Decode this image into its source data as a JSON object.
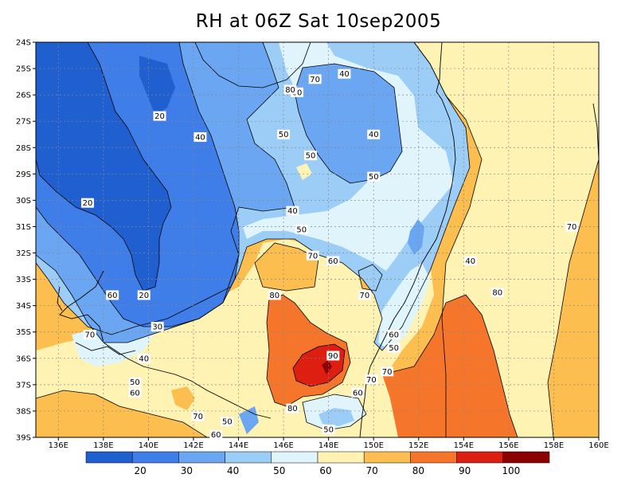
{
  "title": "RH at 06Z Sat 10sep2005",
  "map": {
    "x_ticks": [
      "136E",
      "138E",
      "140E",
      "142E",
      "144E",
      "146E",
      "148E",
      "150E",
      "152E",
      "154E",
      "156E",
      "158E",
      "160E"
    ],
    "y_ticks": [
      "24S",
      "25S",
      "26S",
      "27S",
      "28S",
      "29S",
      "30S",
      "31S",
      "32S",
      "33S",
      "34S",
      "35S",
      "36S",
      "37S",
      "38S",
      "39S"
    ],
    "contour_labels": [
      {
        "text": "20",
        "lon": 140.5,
        "lat": -26.8
      },
      {
        "text": "20",
        "lon": 137.3,
        "lat": -30.1
      },
      {
        "text": "20",
        "lon": 139.8,
        "lat": -33.6
      },
      {
        "text": "30",
        "lon": 140.4,
        "lat": -34.8
      },
      {
        "text": "40",
        "lon": 142.3,
        "lat": -27.6
      },
      {
        "text": "40",
        "lon": 148.7,
        "lat": -25.2
      },
      {
        "text": "40",
        "lon": 150.0,
        "lat": -27.5
      },
      {
        "text": "40",
        "lon": 146.4,
        "lat": -30.4
      },
      {
        "text": "40",
        "lon": 154.3,
        "lat": -32.3
      },
      {
        "text": "40",
        "lon": 139.8,
        "lat": -36.0
      },
      {
        "text": "50",
        "lon": 146.0,
        "lat": -27.5
      },
      {
        "text": "50",
        "lon": 147.2,
        "lat": -28.3
      },
      {
        "text": "50",
        "lon": 150.0,
        "lat": -29.1
      },
      {
        "text": "50",
        "lon": 146.8,
        "lat": -31.1
      },
      {
        "text": "50",
        "lon": 150.9,
        "lat": -35.6
      },
      {
        "text": "50",
        "lon": 139.4,
        "lat": -36.9
      },
      {
        "text": "50",
        "lon": 143.5,
        "lat": -38.4
      },
      {
        "text": "50",
        "lon": 148.0,
        "lat": -38.7
      },
      {
        "text": "60",
        "lon": 146.6,
        "lat": -25.9
      },
      {
        "text": "60",
        "lon": 148.2,
        "lat": -32.3
      },
      {
        "text": "60",
        "lon": 138.4,
        "lat": -33.6
      },
      {
        "text": "60",
        "lon": 150.9,
        "lat": -35.1
      },
      {
        "text": "60",
        "lon": 149.3,
        "lat": -37.3
      },
      {
        "text": "60",
        "lon": 139.4,
        "lat": -37.3
      },
      {
        "text": "60",
        "lon": 143.0,
        "lat": -38.9
      },
      {
        "text": "70",
        "lon": 147.4,
        "lat": -25.4
      },
      {
        "text": "70",
        "lon": 147.3,
        "lat": -32.1
      },
      {
        "text": "70",
        "lon": 149.6,
        "lat": -33.6
      },
      {
        "text": "70",
        "lon": 137.4,
        "lat": -35.1
      },
      {
        "text": "70",
        "lon": 149.9,
        "lat": -36.8
      },
      {
        "text": "70",
        "lon": 150.6,
        "lat": -36.5
      },
      {
        "text": "70",
        "lon": 142.2,
        "lat": -38.2
      },
      {
        "text": "70",
        "lon": 158.8,
        "lat": -31.0
      },
      {
        "text": "80",
        "lon": 146.3,
        "lat": -25.8
      },
      {
        "text": "80",
        "lon": 145.6,
        "lat": -33.6
      },
      {
        "text": "80",
        "lon": 146.4,
        "lat": -37.9
      },
      {
        "text": "80",
        "lon": 155.5,
        "lat": -33.5
      },
      {
        "text": "90",
        "lon": 148.2,
        "lat": -35.9
      }
    ]
  },
  "colorbar": {
    "labels": [
      "20",
      "30",
      "40",
      "50",
      "60",
      "70",
      "80",
      "90",
      "100"
    ],
    "colors": [
      "#1f5fd0",
      "#3f7ee8",
      "#6aa6f2",
      "#9ccdf7",
      "#dff4fb",
      "#fff3b4",
      "#fbbe4f",
      "#f5762a",
      "#dc1f10",
      "#8b0000"
    ]
  },
  "palette": {
    "c20": "#1f5fd0",
    "c30": "#3f7ee8",
    "c40": "#6aa6f2",
    "c50": "#9ccdf7",
    "c60": "#dff4fb",
    "c70": "#fff3b4",
    "c80": "#fbbe4f",
    "c90": "#f5762a",
    "c100": "#dc1f10",
    "c110": "#8b0000"
  }
}
